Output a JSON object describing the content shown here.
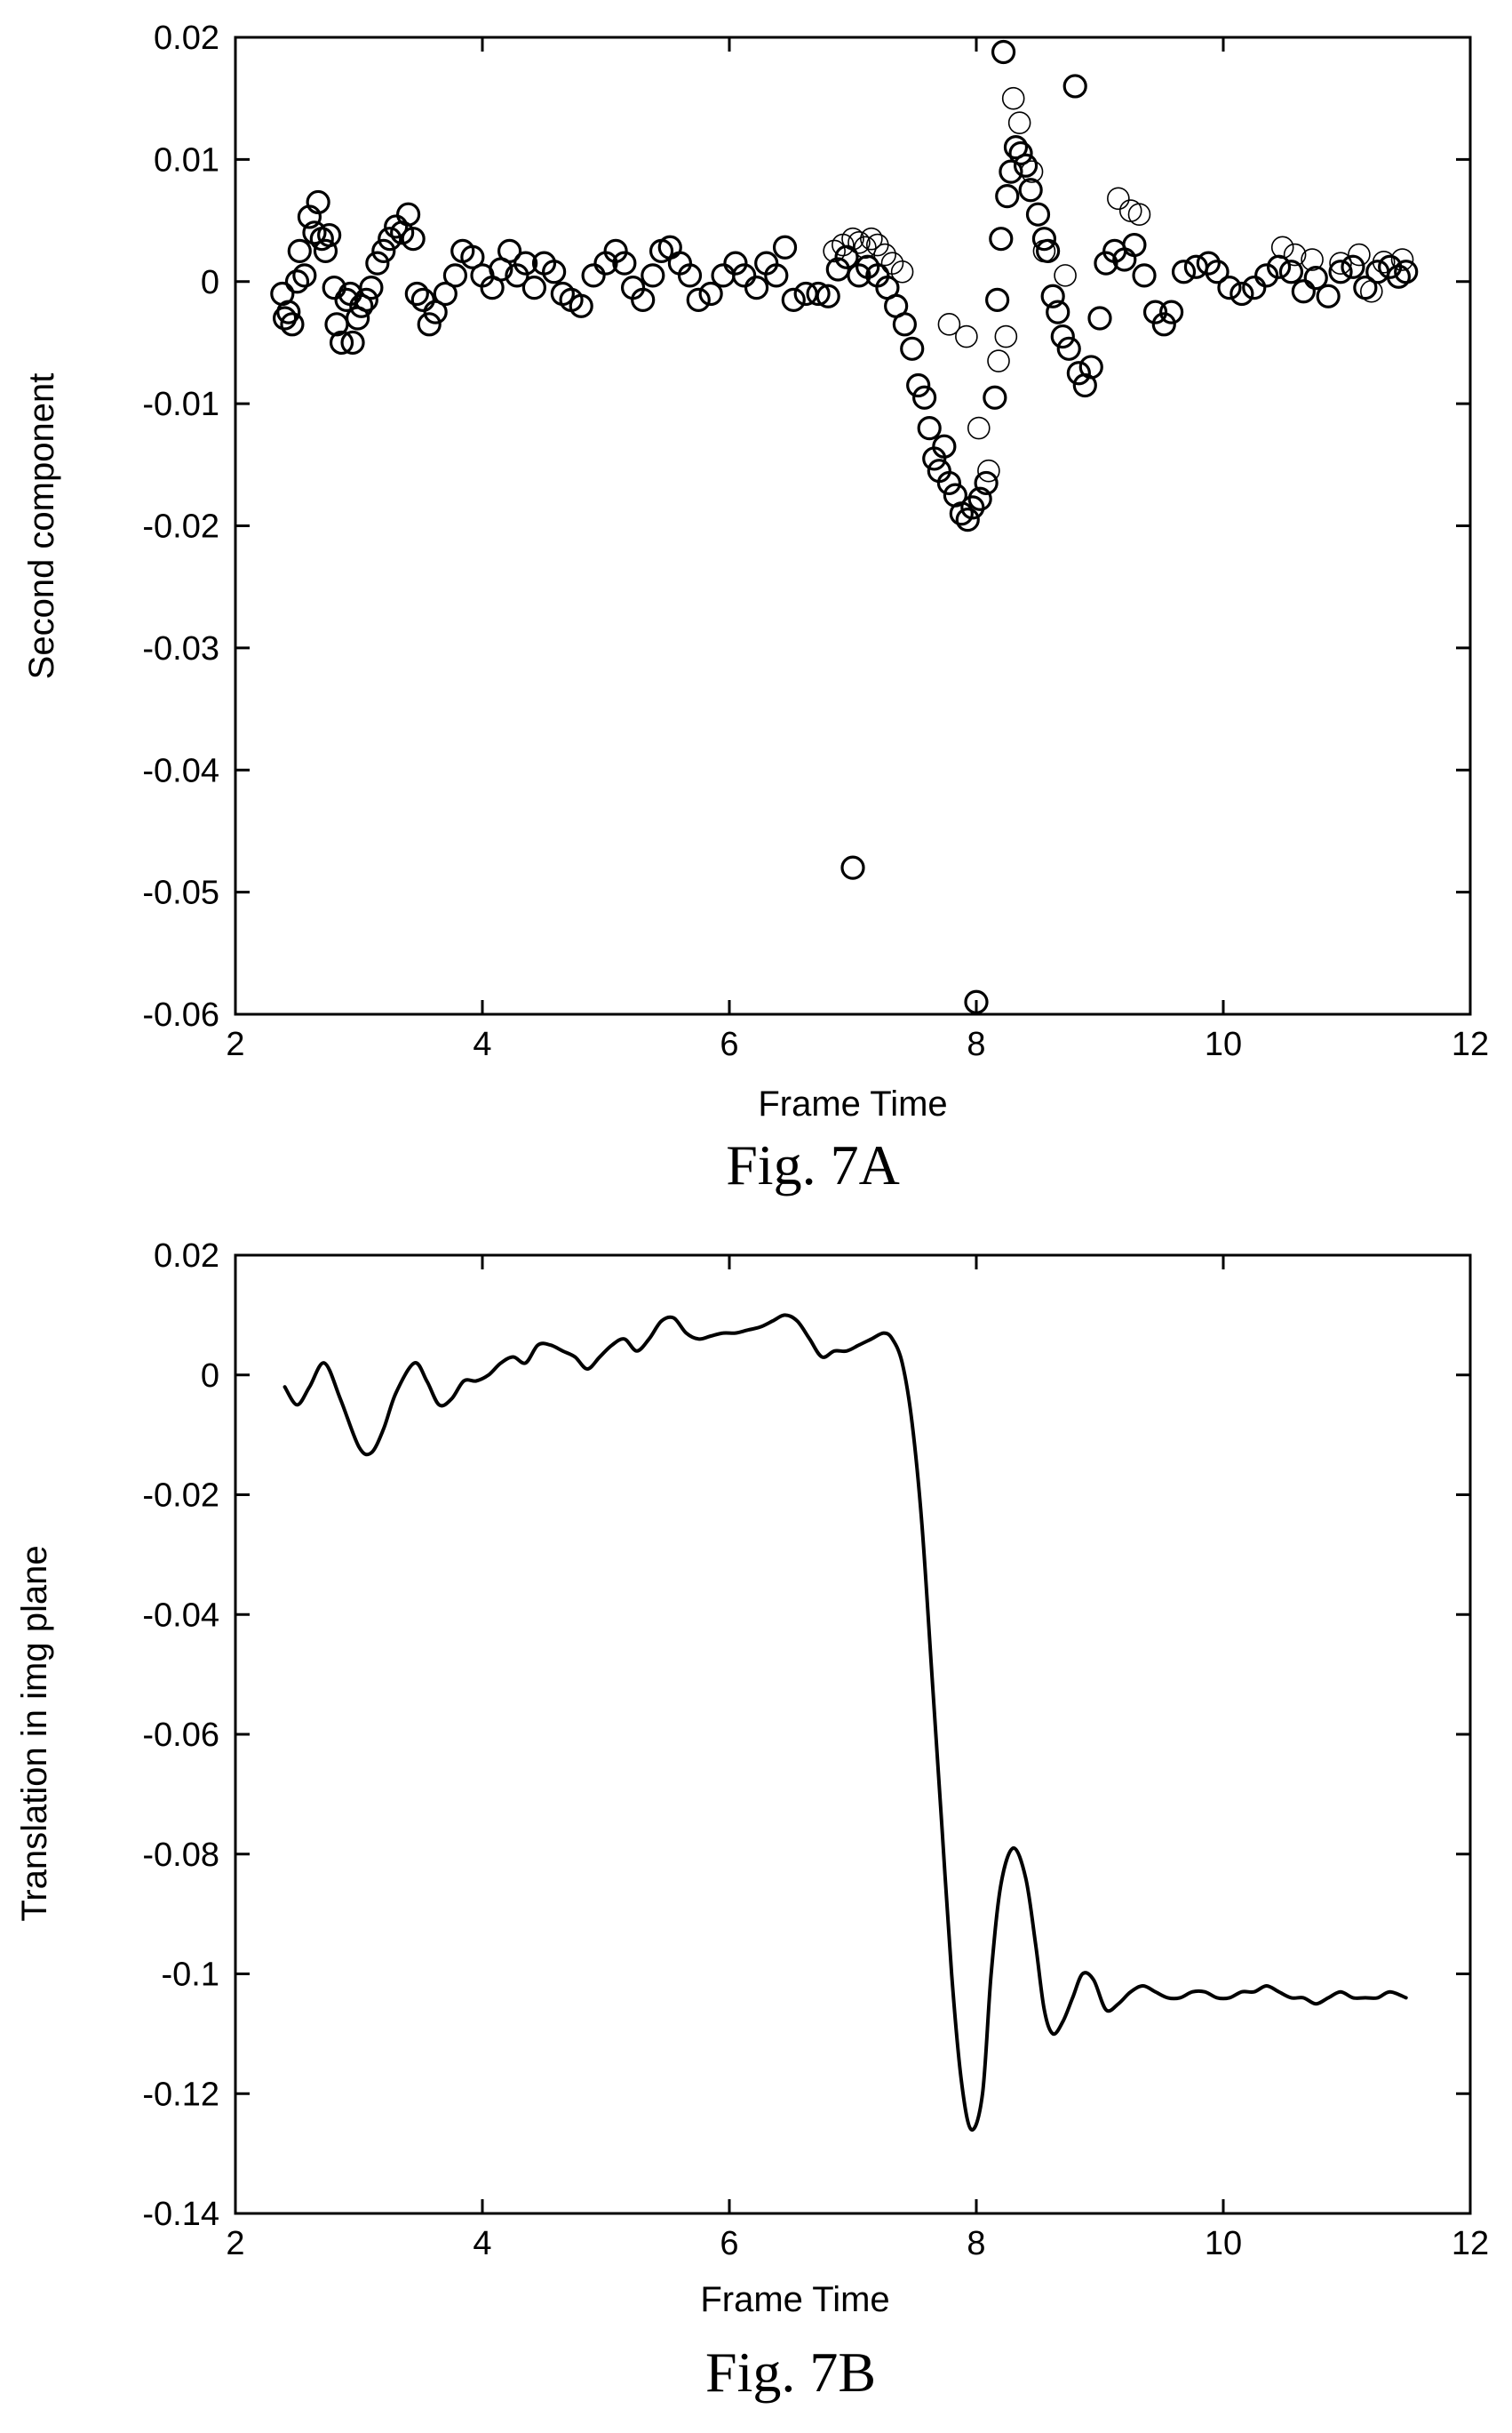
{
  "chart_data": [
    {
      "type": "scatter",
      "caption": "Fig. 7A",
      "xlabel": "Frame Time",
      "ylabel": "Second component",
      "xlim": [
        2,
        12
      ],
      "ylim": [
        -0.06,
        0.02
      ],
      "xticks": [
        "2",
        "4",
        "6",
        "8",
        "10",
        "12"
      ],
      "yticks": [
        "0.02",
        "0.01",
        "0",
        "-0.01",
        "-0.02",
        "-0.03",
        "-0.04",
        "-0.05",
        "-0.06"
      ],
      "marker": "open-circle",
      "grid": false,
      "series": [
        {
          "points": [
            [
              2.38,
              -0.001
            ],
            [
              2.4,
              -0.003
            ],
            [
              2.43,
              -0.0025
            ],
            [
              2.46,
              -0.0035
            ],
            [
              2.5,
              0.0
            ],
            [
              2.52,
              0.0025
            ],
            [
              2.56,
              0.0005
            ],
            [
              2.6,
              0.0053
            ],
            [
              2.64,
              0.004
            ],
            [
              2.67,
              0.0065
            ],
            [
              2.7,
              0.0035
            ],
            [
              2.73,
              0.0025
            ],
            [
              2.76,
              0.0038
            ],
            [
              2.8,
              -0.0005
            ],
            [
              2.82,
              -0.0035
            ],
            [
              2.86,
              -0.005
            ],
            [
              2.9,
              -0.0015
            ],
            [
              2.93,
              -0.001
            ],
            [
              2.95,
              -0.005
            ],
            [
              2.99,
              -0.003
            ],
            [
              3.02,
              -0.002
            ],
            [
              3.06,
              -0.0015
            ],
            [
              3.1,
              -0.0005
            ],
            [
              3.15,
              0.0015
            ],
            [
              3.2,
              0.0025
            ],
            [
              3.25,
              0.0035
            ],
            [
              3.3,
              0.0045
            ],
            [
              3.35,
              0.004
            ],
            [
              3.4,
              0.0055
            ],
            [
              3.44,
              0.0035
            ],
            [
              3.47,
              -0.001
            ],
            [
              3.52,
              -0.0015
            ],
            [
              3.57,
              -0.0035
            ],
            [
              3.62,
              -0.0025
            ],
            [
              3.7,
              -0.001
            ],
            [
              3.78,
              0.0005
            ],
            [
              3.84,
              0.0025
            ],
            [
              3.92,
              0.002
            ],
            [
              4.0,
              0.0005
            ],
            [
              4.08,
              -0.0005
            ],
            [
              4.15,
              0.001
            ],
            [
              4.22,
              0.0025
            ],
            [
              4.28,
              0.0005
            ],
            [
              4.35,
              0.0015
            ],
            [
              4.42,
              -0.0005
            ],
            [
              4.5,
              0.0015
            ],
            [
              4.58,
              0.0008
            ],
            [
              4.65,
              -0.001
            ],
            [
              4.72,
              -0.0015
            ],
            [
              4.8,
              -0.002
            ],
            [
              4.9,
              0.0005
            ],
            [
              5.0,
              0.0015
            ],
            [
              5.08,
              0.0025
            ],
            [
              5.15,
              0.0015
            ],
            [
              5.22,
              -0.0005
            ],
            [
              5.3,
              -0.0015
            ],
            [
              5.38,
              0.0005
            ],
            [
              5.45,
              0.0025
            ],
            [
              5.52,
              0.0028
            ],
            [
              5.6,
              0.0015
            ],
            [
              5.68,
              0.0005
            ],
            [
              5.75,
              -0.0015
            ],
            [
              5.85,
              -0.001
            ],
            [
              5.95,
              0.0005
            ],
            [
              6.05,
              0.0015
            ],
            [
              6.12,
              0.0005
            ],
            [
              6.22,
              -0.0005
            ],
            [
              6.3,
              0.0015
            ],
            [
              6.38,
              0.0005
            ],
            [
              6.45,
              0.0028
            ],
            [
              6.52,
              -0.0015
            ],
            [
              6.62,
              -0.001
            ],
            [
              6.72,
              -0.001
            ],
            [
              6.8,
              -0.0012
            ],
            [
              6.88,
              0.001
            ],
            [
              6.95,
              0.002
            ],
            [
              7.0,
              -0.048
            ],
            [
              7.05,
              0.0005
            ],
            [
              7.12,
              0.0012
            ],
            [
              7.2,
              0.0005
            ],
            [
              7.28,
              -0.0005
            ],
            [
              7.35,
              -0.002
            ],
            [
              7.42,
              -0.0035
            ],
            [
              7.48,
              -0.0055
            ],
            [
              7.53,
              -0.0085
            ],
            [
              7.58,
              -0.0095
            ],
            [
              7.62,
              -0.012
            ],
            [
              7.66,
              -0.0145
            ],
            [
              7.7,
              -0.0155
            ],
            [
              7.74,
              -0.0135
            ],
            [
              7.78,
              -0.0165
            ],
            [
              7.83,
              -0.0175
            ],
            [
              7.88,
              -0.019
            ],
            [
              7.93,
              -0.0195
            ],
            [
              7.97,
              -0.0185
            ],
            [
              8.0,
              -0.059
            ],
            [
              8.03,
              -0.0178
            ],
            [
              8.08,
              -0.0165
            ],
            [
              8.15,
              -0.0095
            ],
            [
              8.17,
              -0.0015
            ],
            [
              8.2,
              0.0035
            ],
            [
              8.22,
              0.0188
            ],
            [
              8.25,
              0.007
            ],
            [
              8.28,
              0.009
            ],
            [
              8.32,
              0.011
            ],
            [
              8.36,
              0.0105
            ],
            [
              8.4,
              0.0095
            ],
            [
              8.44,
              0.0075
            ],
            [
              8.5,
              0.0055
            ],
            [
              8.55,
              0.0035
            ],
            [
              8.58,
              0.0025
            ],
            [
              8.62,
              -0.0012
            ],
            [
              8.66,
              -0.0025
            ],
            [
              8.7,
              -0.0045
            ],
            [
              8.75,
              -0.0055
            ],
            [
              8.8,
              0.016
            ],
            [
              8.83,
              -0.0075
            ],
            [
              8.88,
              -0.0085
            ],
            [
              8.93,
              -0.007
            ],
            [
              9.0,
              -0.003
            ],
            [
              9.05,
              0.0015
            ],
            [
              9.12,
              0.0025
            ],
            [
              9.2,
              0.0018
            ],
            [
              9.28,
              0.003
            ],
            [
              9.36,
              0.0005
            ],
            [
              9.45,
              -0.0025
            ],
            [
              9.52,
              -0.0035
            ],
            [
              9.58,
              -0.0025
            ],
            [
              9.68,
              0.0008
            ],
            [
              9.78,
              0.0012
            ],
            [
              9.88,
              0.0015
            ],
            [
              9.95,
              0.0008
            ],
            [
              10.05,
              -0.0005
            ],
            [
              10.15,
              -0.001
            ],
            [
              10.25,
              -0.0005
            ],
            [
              10.35,
              0.0005
            ],
            [
              10.45,
              0.0012
            ],
            [
              10.55,
              0.0008
            ],
            [
              10.65,
              -0.0008
            ],
            [
              10.75,
              0.0003
            ],
            [
              10.85,
              -0.0012
            ],
            [
              10.95,
              0.0008
            ],
            [
              11.05,
              0.0012
            ],
            [
              11.15,
              -0.0005
            ],
            [
              11.25,
              0.0008
            ],
            [
              11.35,
              0.0012
            ],
            [
              11.42,
              0.0004
            ],
            [
              11.48,
              0.0008
            ]
          ],
          "faint_points": [
            [
              6.85,
              0.0025
            ],
            [
              6.92,
              0.003
            ],
            [
              7.0,
              0.0035
            ],
            [
              7.05,
              0.0032
            ],
            [
              7.1,
              0.0028
            ],
            [
              7.15,
              0.0035
            ],
            [
              7.2,
              0.003
            ],
            [
              7.26,
              0.0022
            ],
            [
              7.32,
              0.0015
            ],
            [
              7.4,
              0.0008
            ],
            [
              7.78,
              -0.0035
            ],
            [
              7.92,
              -0.0045
            ],
            [
              8.02,
              -0.012
            ],
            [
              8.1,
              -0.0155
            ],
            [
              8.18,
              -0.0065
            ],
            [
              8.24,
              -0.0045
            ],
            [
              8.3,
              0.015
            ],
            [
              8.35,
              0.013
            ],
            [
              8.45,
              0.009
            ],
            [
              8.55,
              0.0025
            ],
            [
              8.72,
              0.0005
            ],
            [
              9.05,
              0.0015
            ],
            [
              9.15,
              0.0068
            ],
            [
              9.25,
              0.0058
            ],
            [
              9.32,
              0.0055
            ],
            [
              10.48,
              0.0028
            ],
            [
              10.58,
              0.0022
            ],
            [
              10.72,
              0.0018
            ],
            [
              10.95,
              0.0015
            ],
            [
              11.1,
              0.0022
            ],
            [
              11.2,
              -0.0008
            ],
            [
              11.3,
              0.0016
            ],
            [
              11.45,
              0.0018
            ]
          ]
        }
      ]
    },
    {
      "type": "line",
      "caption": "Fig. 7B",
      "xlabel": "Frame Time",
      "ylabel": "Translation in img plane",
      "xlim": [
        2,
        12
      ],
      "ylim": [
        -0.14,
        0.02
      ],
      "xticks": [
        "2",
        "4",
        "6",
        "8",
        "10",
        "12"
      ],
      "yticks": [
        "0.02",
        "0",
        "-0.02",
        "-0.04",
        "-0.06",
        "-0.08",
        "-0.1",
        "-0.12",
        "-0.14"
      ],
      "grid": false,
      "series": [
        {
          "x": [
            2.4,
            2.5,
            2.6,
            2.72,
            2.85,
            3.0,
            3.1,
            3.2,
            3.3,
            3.45,
            3.55,
            3.65,
            3.75,
            3.85,
            3.95,
            4.05,
            4.15,
            4.25,
            4.35,
            4.45,
            4.55,
            4.65,
            4.75,
            4.85,
            4.95,
            5.05,
            5.15,
            5.25,
            5.35,
            5.45,
            5.55,
            5.65,
            5.75,
            5.85,
            5.95,
            6.05,
            6.15,
            6.25,
            6.35,
            6.45,
            6.55,
            6.65,
            6.75,
            6.85,
            6.95,
            7.05,
            7.15,
            7.25,
            7.32,
            7.4,
            7.48,
            7.56,
            7.64,
            7.72,
            7.8,
            7.88,
            7.96,
            8.05,
            8.12,
            8.2,
            8.3,
            8.4,
            8.48,
            8.55,
            8.62,
            8.7,
            8.78,
            8.86,
            8.95,
            9.05,
            9.15,
            9.25,
            9.35,
            9.45,
            9.55,
            9.65,
            9.75,
            9.85,
            9.95,
            10.05,
            10.15,
            10.25,
            10.35,
            10.45,
            10.55,
            10.65,
            10.75,
            10.85,
            10.95,
            11.05,
            11.15,
            11.25,
            11.35,
            11.48
          ],
          "y": [
            -0.002,
            -0.005,
            -0.002,
            0.002,
            -0.004,
            -0.012,
            -0.013,
            -0.009,
            -0.003,
            0.002,
            -0.001,
            -0.005,
            -0.004,
            -0.001,
            -0.001,
            0.0,
            0.002,
            0.003,
            0.002,
            0.005,
            0.005,
            0.004,
            0.003,
            0.001,
            0.003,
            0.005,
            0.006,
            0.004,
            0.006,
            0.009,
            0.0095,
            0.007,
            0.006,
            0.0065,
            0.007,
            0.007,
            0.0075,
            0.008,
            0.009,
            0.01,
            0.009,
            0.006,
            0.003,
            0.004,
            0.004,
            0.005,
            0.006,
            0.007,
            0.006,
            0.002,
            -0.008,
            -0.025,
            -0.05,
            -0.075,
            -0.1,
            -0.118,
            -0.126,
            -0.12,
            -0.1,
            -0.085,
            -0.079,
            -0.084,
            -0.095,
            -0.106,
            -0.11,
            -0.108,
            -0.104,
            -0.1,
            -0.101,
            -0.106,
            -0.105,
            -0.103,
            -0.102,
            -0.103,
            -0.104,
            -0.104,
            -0.103,
            -0.103,
            -0.104,
            -0.104,
            -0.103,
            -0.103,
            -0.102,
            -0.103,
            -0.104,
            -0.104,
            -0.105,
            -0.104,
            -0.103,
            -0.104,
            -0.104,
            -0.104,
            -0.103,
            -0.104
          ]
        }
      ]
    }
  ]
}
